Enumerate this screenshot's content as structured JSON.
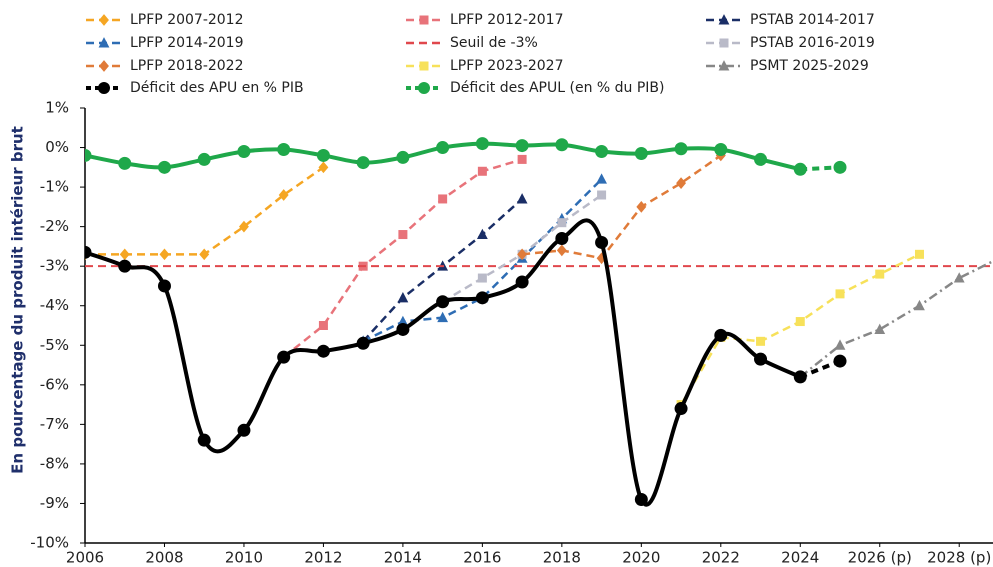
{
  "chart_data": {
    "type": "line",
    "y_axis_label": "En pourcentage du produit intérieur brut",
    "xlim": [
      2006,
      2028.85
    ],
    "xticks": [
      2006,
      2008,
      2010,
      2012,
      2014,
      2016,
      2018,
      2020,
      2022,
      2024,
      {
        "value": 2026,
        "label": "2026 (p)"
      },
      {
        "value": 2028,
        "label": "2028 (p)"
      }
    ],
    "ylim": [
      -10,
      1
    ],
    "yticks": [
      {
        "value": 1,
        "label": "1%"
      },
      {
        "value": 0,
        "label": "0%"
      },
      {
        "value": -1,
        "label": "-1%"
      },
      {
        "value": -2,
        "label": "-2%"
      },
      {
        "value": -3,
        "label": "-3%"
      },
      {
        "value": -4,
        "label": "-4%"
      },
      {
        "value": -5,
        "label": "-5%"
      },
      {
        "value": -6,
        "label": "-6%"
      },
      {
        "value": -7,
        "label": "-7%"
      },
      {
        "value": -8,
        "label": "-8%"
      },
      {
        "value": -9,
        "label": "-9%"
      },
      {
        "value": -10,
        "label": "-10%"
      }
    ],
    "legend_position": "top",
    "series": [
      {
        "name": "LPFP 2007-2012",
        "color": "#f5a623",
        "marker": "diamond",
        "dash": "dashed",
        "x": [
          2006,
          2007,
          2008,
          2009,
          2010,
          2011,
          2012
        ],
        "values": [
          -2.7,
          -2.7,
          -2.7,
          -2.7,
          -2.0,
          -1.2,
          -0.5
        ]
      },
      {
        "name": "LPFP 2012-2017",
        "color": "#e8737a",
        "marker": "square",
        "dash": "dashed",
        "x": [
          2011,
          2012,
          2013,
          2014,
          2015,
          2016,
          2017
        ],
        "values": [
          -5.3,
          -4.5,
          -3.0,
          -2.2,
          -1.3,
          -0.6,
          -0.3
        ]
      },
      {
        "name": "PSTAB 2014-2017",
        "color": "#1a2e66",
        "marker": "triangle",
        "dash": "dashed",
        "x": [
          2013,
          2014,
          2015,
          2016,
          2017
        ],
        "values": [
          -4.9,
          -3.8,
          -3.0,
          -2.2,
          -1.3
        ]
      },
      {
        "name": "LPFP 2014-2019",
        "color": "#2e6db4",
        "marker": "triangle",
        "dash": "dashed",
        "x": [
          2013,
          2014,
          2015,
          2016,
          2017,
          2018,
          2019
        ],
        "values": [
          -4.9,
          -4.4,
          -4.3,
          -3.8,
          -2.8,
          -1.8,
          -0.8
        ]
      },
      {
        "name": "Seuil de -3%",
        "color": "#e0474c",
        "marker": "none",
        "dash": "dashed",
        "x": [
          2006,
          2028.85
        ],
        "values": [
          -3,
          -3
        ]
      },
      {
        "name": "PSTAB 2016-2019",
        "color": "#b9bac8",
        "marker": "square",
        "dash": "dashed",
        "x": [
          2015,
          2016,
          2017,
          2018,
          2019
        ],
        "values": [
          -3.9,
          -3.3,
          -2.7,
          -1.9,
          -1.2
        ]
      },
      {
        "name": "LPFP 2018-2022",
        "color": "#e07b39",
        "marker": "diamond",
        "dash": "dashed",
        "x": [
          2017,
          2018,
          2019,
          2020,
          2021,
          2022
        ],
        "values": [
          -2.7,
          -2.6,
          -2.8,
          -1.5,
          -0.9,
          -0.2
        ]
      },
      {
        "name": "LPFP 2023-2027",
        "color": "#f7e15a",
        "marker": "square",
        "dash": "dashed",
        "x": [
          2021,
          2022,
          2023,
          2024,
          2025,
          2026,
          2027
        ],
        "values": [
          -6.5,
          -4.8,
          -4.9,
          -4.4,
          -3.7,
          -3.2,
          -2.7
        ]
      },
      {
        "name": "PSMT 2025-2029",
        "color": "#878787",
        "marker": "triangle",
        "dash": "dashdot",
        "x": [
          2024,
          2025,
          2026,
          2027,
          2028,
          2029
        ],
        "values": [
          -5.8,
          -5.0,
          -4.6,
          -4.0,
          -3.3,
          -2.8
        ]
      },
      {
        "name": "Déficit des APU en % PIB",
        "color": "#000000",
        "marker": "circle",
        "dash": "smooth",
        "projection_from": 2024,
        "x": [
          2006,
          2007,
          2008,
          2009,
          2010,
          2011,
          2012,
          2013,
          2014,
          2015,
          2016,
          2017,
          2018,
          2019,
          2020,
          2021,
          2022,
          2023,
          2024,
          2025
        ],
        "values": [
          -2.65,
          -3.0,
          -3.5,
          -7.4,
          -7.15,
          -5.3,
          -5.15,
          -4.95,
          -4.6,
          -3.9,
          -3.8,
          -3.4,
          -2.3,
          -2.4,
          -8.9,
          -6.6,
          -4.75,
          -5.35,
          -5.8,
          -5.4
        ]
      },
      {
        "name": "Déficit des APUL (en % du PIB)",
        "color": "#1fa84a",
        "marker": "circle",
        "dash": "smooth",
        "projection_from": 2024,
        "x": [
          2006,
          2007,
          2008,
          2009,
          2010,
          2011,
          2012,
          2013,
          2014,
          2015,
          2016,
          2017,
          2018,
          2019,
          2020,
          2021,
          2022,
          2023,
          2024,
          2025
        ],
        "values": [
          -0.2,
          -0.4,
          -0.5,
          -0.3,
          -0.1,
          -0.05,
          -0.2,
          -0.38,
          -0.25,
          0.0,
          0.1,
          0.05,
          0.07,
          -0.1,
          -0.15,
          -0.03,
          -0.05,
          -0.3,
          -0.55,
          -0.5
        ]
      }
    ]
  }
}
